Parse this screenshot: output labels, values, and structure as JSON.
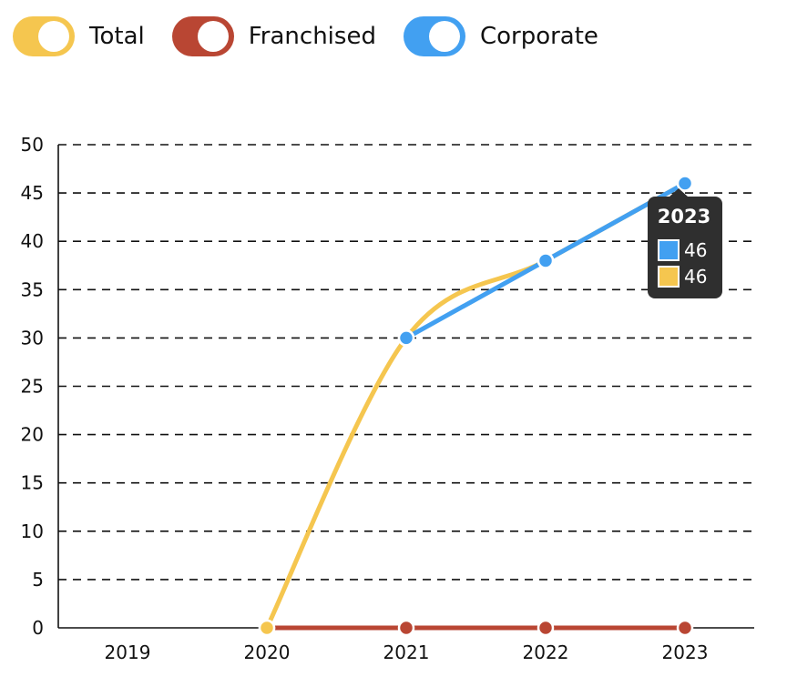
{
  "legend": {
    "items": [
      {
        "label": "Total",
        "color": "#f5c64f"
      },
      {
        "label": "Franchised",
        "color": "#b94633"
      },
      {
        "label": "Corporate",
        "color": "#42a0f1"
      }
    ]
  },
  "chart_data": {
    "type": "line",
    "x": [
      "2019",
      "2020",
      "2021",
      "2022",
      "2023"
    ],
    "ylim": [
      0,
      50
    ],
    "yticks": [
      "0",
      "5",
      "10",
      "15",
      "20",
      "25",
      "30",
      "35",
      "40",
      "45",
      "50"
    ],
    "grid": true,
    "legend_position": "top-left",
    "series": [
      {
        "name": "Total",
        "color": "#f5c64f",
        "values": [
          null,
          0,
          30,
          38,
          46
        ]
      },
      {
        "name": "Franchised",
        "color": "#b94633",
        "values": [
          null,
          0,
          0,
          0,
          0
        ]
      },
      {
        "name": "Corporate",
        "color": "#42a0f1",
        "values": [
          null,
          null,
          30,
          38,
          46
        ]
      }
    ],
    "tooltip": {
      "title": "2023",
      "rows": [
        {
          "value": "46",
          "color": "#42a0f1"
        },
        {
          "value": "46",
          "color": "#f5c64f"
        }
      ]
    }
  }
}
